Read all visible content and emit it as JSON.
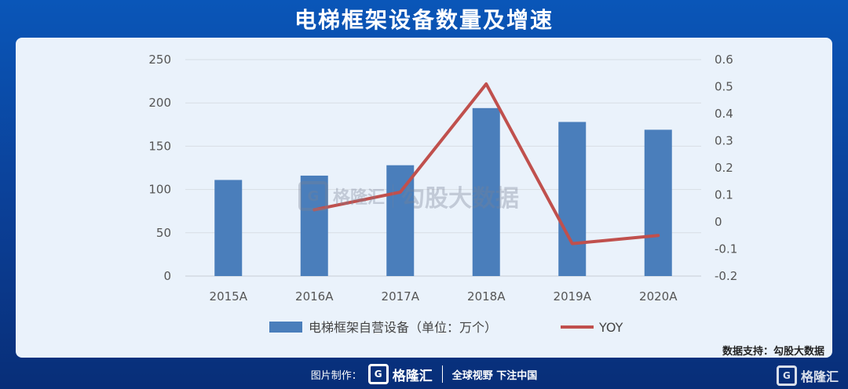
{
  "title": "电梯框架设备数量及增速",
  "source": "数据支持：勾股大数据",
  "watermark": {
    "logo_letter": "G",
    "name": "格隆汇",
    "brand": "勾股大数据"
  },
  "footer": {
    "label": "图片制作：",
    "logo_letter": "G",
    "brand": "格隆汇",
    "slogan": "全球视野 下注中国"
  },
  "corner_brand": {
    "logo_letter": "G",
    "name": "格隆汇"
  },
  "chart_data": {
    "type": "bar",
    "title": "电梯框架设备数量及增速",
    "categories": [
      "2015A",
      "2016A",
      "2017A",
      "2018A",
      "2019A",
      "2020A"
    ],
    "series": [
      {
        "name": "电梯框架自营设备（单位：万个）",
        "type": "bar",
        "axis": "left",
        "color": "#4a7ebb",
        "values": [
          111,
          116,
          128,
          194,
          178,
          169
        ]
      },
      {
        "name": "YOY",
        "type": "line",
        "axis": "right",
        "color": "#c0504d",
        "values": [
          null,
          0.045,
          0.11,
          0.51,
          -0.08,
          -0.05
        ]
      }
    ],
    "y_left": {
      "min": 0,
      "max": 250,
      "ticks": [
        "0",
        "50",
        "100",
        "150",
        "200",
        "250"
      ]
    },
    "y_right": {
      "min": -0.2,
      "max": 0.6,
      "ticks": [
        "-0.2",
        "-0.1",
        "0",
        "0.1",
        "0.2",
        "0.3",
        "0.4",
        "0.5",
        "0.6"
      ]
    },
    "grid": true,
    "legend": "bottom"
  }
}
